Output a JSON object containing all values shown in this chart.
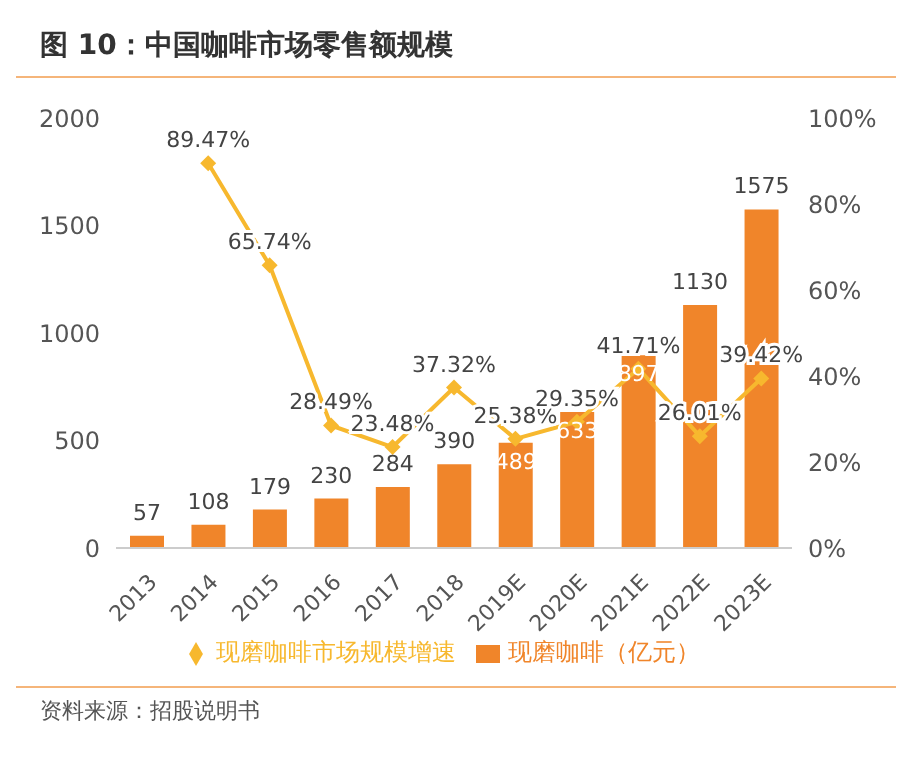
{
  "chart_data": {
    "type": "bar",
    "title": "图 10：中国咖啡市场零售额规模",
    "categories": [
      "2013",
      "2014",
      "2015",
      "2016",
      "2017",
      "2018",
      "2019E",
      "2020E",
      "2021E",
      "2022E",
      "2023E"
    ],
    "series": [
      {
        "name": "现磨咖啡（亿元）",
        "color": "#f0852a",
        "values": [
          57,
          108,
          179,
          230,
          284,
          390,
          489,
          633,
          897,
          1130,
          1575
        ],
        "value_labels": [
          "57",
          "108",
          "179",
          "230",
          "284",
          "390",
          "489",
          "633",
          "897",
          "1130",
          "1575"
        ]
      },
      {
        "name": "现磨咖啡市场规模增速",
        "type": "line",
        "axis": "y2",
        "color": "#f7b82e",
        "values": [
          null,
          89.47,
          65.74,
          28.49,
          23.48,
          37.32,
          25.38,
          29.35,
          41.71,
          26.01,
          39.42
        ],
        "value_labels": [
          null,
          "89.47%",
          "65.74%",
          "28.49%",
          "23.48%",
          "37.32%",
          "25.38%",
          "29.35%",
          "41.71%",
          "26.01%",
          "39.42%"
        ]
      }
    ],
    "ylim": [
      0,
      2000
    ],
    "yticks": [
      0,
      500,
      1000,
      1500,
      2000
    ],
    "y2lim": [
      0,
      100
    ],
    "y2ticks": [
      {
        "value": 0,
        "label": "0%"
      },
      {
        "value": 20,
        "label": "20%"
      },
      {
        "value": 40,
        "label": "40%"
      },
      {
        "value": 60,
        "label": "60%"
      },
      {
        "value": 80,
        "label": "80%"
      },
      {
        "value": 100,
        "label": "100%"
      }
    ],
    "legend": "bottom",
    "marker": "diamond",
    "annotations": [
      "资料来源：招股说明书"
    ]
  }
}
